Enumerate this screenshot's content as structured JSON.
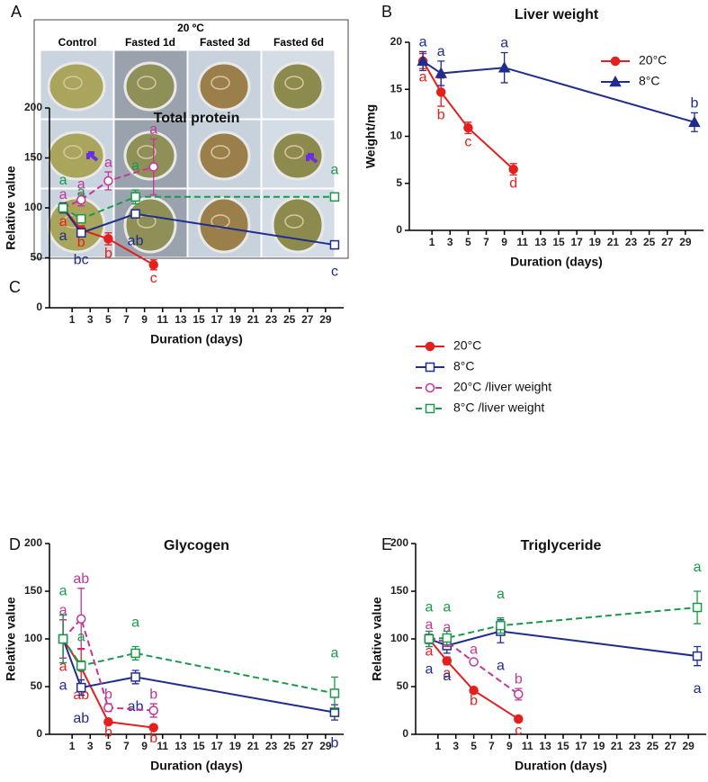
{
  "panel_a": {
    "letter": "A",
    "title": "20 ºC",
    "columns": [
      "Control",
      "Fasted 1d",
      "Fasted 3d",
      "Fasted 6d"
    ]
  },
  "chart_data": [
    {
      "type": "line",
      "panel": "B",
      "title": "Liver weight",
      "xlabel": "Duration (days)",
      "ylabel": "Weight/mg",
      "xlim": [
        -1.5,
        31
      ],
      "ylim": [
        0,
        20
      ],
      "xticks": [
        1,
        3,
        5,
        7,
        9,
        11,
        13,
        15,
        17,
        19,
        21,
        23,
        25,
        27,
        29
      ],
      "yticks": [
        0,
        5,
        10,
        15,
        20
      ],
      "legend": "upper right",
      "series": [
        {
          "name": "20°C",
          "color": "#e3201e",
          "marker": "circle",
          "filled": true,
          "dashed": false,
          "x": [
            0,
            2,
            5,
            10
          ],
          "values": [
            18,
            14.7,
            10.9,
            6.5
          ],
          "errors": [
            0.8,
            1.5,
            0.6,
            0.6
          ],
          "labels": [
            "a",
            "b",
            "c",
            "d"
          ]
        },
        {
          "name": "8°C",
          "color": "#1f2d8c",
          "marker": "triangle",
          "filled": true,
          "dashed": false,
          "x": [
            0,
            2,
            9,
            30
          ],
          "values": [
            18,
            16.7,
            17.3,
            11.5
          ],
          "errors": [
            1,
            1.3,
            1.6,
            1
          ],
          "labels": [
            "a",
            "a",
            "a",
            "b"
          ]
        }
      ]
    },
    {
      "type": "line",
      "panel": "C",
      "title": "Total protein",
      "xlabel": "Duration (days)",
      "ylabel": "Relative value",
      "xlim": [
        -1.5,
        31
      ],
      "ylim": [
        0,
        200
      ],
      "xticks": [
        1,
        3,
        5,
        7,
        9,
        11,
        13,
        15,
        17,
        19,
        21,
        23,
        25,
        27,
        29
      ],
      "yticks": [
        0,
        50,
        100,
        150,
        200
      ],
      "legend": "outside right",
      "series": [
        {
          "name": "20°C",
          "color": "#e3201e",
          "marker": "circle",
          "filled": true,
          "dashed": false,
          "x": [
            0,
            2,
            5,
            10
          ],
          "values": [
            100,
            78,
            69,
            43
          ],
          "errors": [
            5,
            4,
            6,
            5
          ],
          "labels": [
            "a",
            "b",
            "b",
            "c"
          ]
        },
        {
          "name": "8°C",
          "color": "#1f2d8c",
          "marker": "square",
          "filled": false,
          "dashed": false,
          "x": [
            0,
            2,
            8,
            30
          ],
          "values": [
            100,
            75,
            94,
            63
          ],
          "errors": [
            5,
            4,
            4,
            4
          ],
          "labels": [
            "a",
            "bc",
            "ab",
            "c"
          ]
        },
        {
          "name": "20°C /liver weight",
          "color": "#c2359b",
          "marker": "circle",
          "filled": false,
          "dashed": true,
          "x": [
            0,
            2,
            5,
            10
          ],
          "values": [
            100,
            108,
            127,
            141
          ],
          "errors": [
            4,
            6,
            9,
            28
          ],
          "labels": [
            "a",
            "a",
            "a",
            "a"
          ]
        },
        {
          "name": "8°C /liver weight",
          "color": "#1a9a4a",
          "marker": "square",
          "filled": false,
          "dashed": true,
          "x": [
            0,
            2,
            8,
            30
          ],
          "values": [
            100,
            89,
            111,
            111
          ],
          "errors": [
            4,
            3,
            7,
            3
          ],
          "labels": [
            "a",
            "a",
            "a",
            "a"
          ]
        }
      ]
    },
    {
      "type": "line",
      "panel": "D",
      "title": "Glycogen",
      "xlabel": "Duration (days)",
      "ylabel": "Relative value",
      "xlim": [
        -1.5,
        31
      ],
      "ylim": [
        0,
        200
      ],
      "xticks": [
        1,
        3,
        5,
        7,
        9,
        11,
        13,
        15,
        17,
        19,
        21,
        23,
        25,
        27,
        29
      ],
      "yticks": [
        0,
        50,
        100,
        150,
        200
      ],
      "series": [
        {
          "color": "#e3201e",
          "marker": "circle",
          "filled": true,
          "dashed": false,
          "x": [
            0,
            2,
            5,
            10
          ],
          "values": [
            100,
            70,
            13,
            7
          ],
          "errors": [
            20,
            20,
            2,
            2
          ],
          "labels": [
            "a",
            "ab",
            "b",
            "b"
          ]
        },
        {
          "color": "#1f2d8c",
          "marker": "square",
          "filled": false,
          "dashed": false,
          "x": [
            0,
            2,
            8,
            30
          ],
          "values": [
            100,
            49,
            60,
            23
          ],
          "errors": [
            25,
            8,
            7,
            8
          ],
          "labels": [
            "a",
            "ab",
            "ab",
            "b"
          ]
        },
        {
          "color": "#c2359b",
          "marker": "circle",
          "filled": false,
          "dashed": true,
          "x": [
            0,
            2,
            5,
            10
          ],
          "values": [
            100,
            121,
            28,
            25
          ],
          "errors": [
            20,
            32,
            4,
            7
          ],
          "labels": [
            "a",
            "ab",
            "b",
            "b"
          ]
        },
        {
          "color": "#1a9a4a",
          "marker": "square",
          "filled": false,
          "dashed": true,
          "x": [
            0,
            2,
            8,
            30
          ],
          "values": [
            100,
            72,
            85,
            43
          ],
          "errors": [
            25,
            5,
            7,
            17
          ],
          "labels": [
            "a",
            "a",
            "a",
            "a"
          ]
        }
      ]
    },
    {
      "type": "line",
      "panel": "E",
      "title": "Triglyceride",
      "xlabel": "Duration (days)",
      "ylabel": "Relative value",
      "xlim": [
        -1.5,
        31
      ],
      "ylim": [
        0,
        200
      ],
      "xticks": [
        1,
        3,
        5,
        7,
        9,
        11,
        13,
        15,
        17,
        19,
        21,
        23,
        25,
        27,
        29
      ],
      "yticks": [
        0,
        50,
        100,
        150,
        200
      ],
      "series": [
        {
          "color": "#e3201e",
          "marker": "circle",
          "filled": true,
          "dashed": false,
          "x": [
            0,
            2,
            5,
            10
          ],
          "values": [
            100,
            77,
            46,
            16
          ],
          "errors": [
            4,
            4,
            2,
            3
          ],
          "labels": [
            "a",
            "a",
            "b",
            "c"
          ]
        },
        {
          "color": "#1f2d8c",
          "marker": "square",
          "filled": false,
          "dashed": false,
          "x": [
            0,
            2,
            8,
            30
          ],
          "values": [
            100,
            93,
            108,
            82
          ],
          "errors": [
            8,
            8,
            12,
            10
          ],
          "labels": [
            "a",
            "a",
            "a",
            "a"
          ]
        },
        {
          "color": "#c2359b",
          "marker": "circle",
          "filled": false,
          "dashed": true,
          "x": [
            0,
            2,
            5,
            10
          ],
          "values": [
            100,
            97,
            76,
            42
          ],
          "errors": [
            5,
            5,
            3,
            6
          ],
          "labels": [
            "a",
            "a",
            "a",
            "b"
          ]
        },
        {
          "color": "#1a9a4a",
          "marker": "square",
          "filled": false,
          "dashed": true,
          "x": [
            0,
            2,
            8,
            30
          ],
          "values": [
            100,
            101,
            114,
            133
          ],
          "errors": [
            8,
            7,
            8,
            17
          ],
          "labels": [
            "a",
            "a",
            "a",
            "a"
          ]
        }
      ]
    }
  ]
}
